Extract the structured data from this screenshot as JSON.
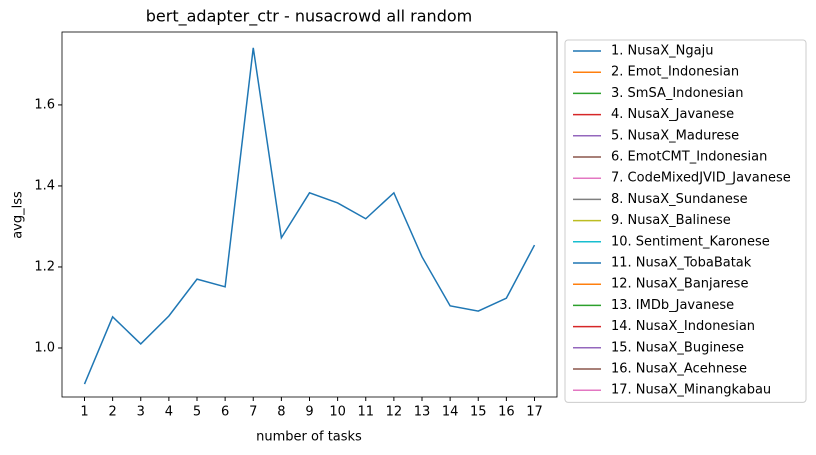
{
  "chart_data": {
    "type": "line",
    "title": "bert_adapter_ctr - nusacrowd all random",
    "xlabel": "number of tasks",
    "ylabel": "avg_lss",
    "x": [
      1,
      2,
      3,
      4,
      5,
      6,
      7,
      8,
      9,
      10,
      11,
      12,
      13,
      14,
      15,
      16,
      17
    ],
    "xlim": [
      0.2,
      17.8
    ],
    "xticks": [
      1,
      2,
      3,
      4,
      5,
      6,
      7,
      8,
      9,
      10,
      11,
      12,
      13,
      14,
      15,
      16,
      17
    ],
    "ylim": [
      0.879,
      1.78
    ],
    "yticks": [
      {
        "value": 1.0,
        "label": "1.0"
      },
      {
        "value": 1.2,
        "label": "1.2"
      },
      {
        "value": 1.4,
        "label": "1.4"
      },
      {
        "value": 1.6,
        "label": "1.6"
      }
    ],
    "legend": "outside right",
    "grid": false,
    "series": [
      {
        "name": "1. NusaX_Ngaju",
        "color": "#1f77b4",
        "values": [
          0.911,
          1.077,
          1.01,
          1.079,
          1.17,
          1.151,
          1.741,
          1.272,
          1.383,
          1.358,
          1.319,
          1.383,
          1.225,
          1.104,
          1.091,
          1.123,
          1.254
        ]
      },
      {
        "name": "2. Emot_Indonesian",
        "color": "#ff7f0e",
        "values": [
          null,
          null,
          null,
          null,
          null,
          null,
          null,
          null,
          null,
          null,
          null,
          null,
          null,
          null,
          null,
          null,
          null
        ]
      },
      {
        "name": "3. SmSA_Indonesian",
        "color": "#2ca02c",
        "values": [
          null,
          null,
          null,
          null,
          null,
          null,
          null,
          null,
          null,
          null,
          null,
          null,
          null,
          null,
          null,
          null,
          null
        ]
      },
      {
        "name": "4. NusaX_Javanese",
        "color": "#d62728",
        "values": [
          null,
          null,
          null,
          null,
          null,
          null,
          null,
          null,
          null,
          null,
          null,
          null,
          null,
          null,
          null,
          null,
          null
        ]
      },
      {
        "name": "5. NusaX_Madurese",
        "color": "#9467bd",
        "values": [
          null,
          null,
          null,
          null,
          null,
          null,
          null,
          null,
          null,
          null,
          null,
          null,
          null,
          null,
          null,
          null,
          null
        ]
      },
      {
        "name": "6. EmotCMT_Indonesian",
        "color": "#8c564b",
        "values": [
          null,
          null,
          null,
          null,
          null,
          null,
          null,
          null,
          null,
          null,
          null,
          null,
          null,
          null,
          null,
          null,
          null
        ]
      },
      {
        "name": "7. CodeMixedJVID_Javanese",
        "color": "#e377c2",
        "values": [
          null,
          null,
          null,
          null,
          null,
          null,
          null,
          null,
          null,
          null,
          null,
          null,
          null,
          null,
          null,
          null,
          null
        ]
      },
      {
        "name": "8. NusaX_Sundanese",
        "color": "#7f7f7f",
        "values": [
          null,
          null,
          null,
          null,
          null,
          null,
          null,
          null,
          null,
          null,
          null,
          null,
          null,
          null,
          null,
          null,
          null
        ]
      },
      {
        "name": "9. NusaX_Balinese",
        "color": "#bcbd22",
        "values": [
          null,
          null,
          null,
          null,
          null,
          null,
          null,
          null,
          null,
          null,
          null,
          null,
          null,
          null,
          null,
          null,
          null
        ]
      },
      {
        "name": "10. Sentiment_Karonese",
        "color": "#17becf",
        "values": [
          null,
          null,
          null,
          null,
          null,
          null,
          null,
          null,
          null,
          null,
          null,
          null,
          null,
          null,
          null,
          null,
          null
        ]
      },
      {
        "name": "11. NusaX_TobaBatak",
        "color": "#1f77b4",
        "values": [
          null,
          null,
          null,
          null,
          null,
          null,
          null,
          null,
          null,
          null,
          null,
          null,
          null,
          null,
          null,
          null,
          null
        ]
      },
      {
        "name": "12. NusaX_Banjarese",
        "color": "#ff7f0e",
        "values": [
          null,
          null,
          null,
          null,
          null,
          null,
          null,
          null,
          null,
          null,
          null,
          null,
          null,
          null,
          null,
          null,
          null
        ]
      },
      {
        "name": "13. IMDb_Javanese",
        "color": "#2ca02c",
        "values": [
          null,
          null,
          null,
          null,
          null,
          null,
          null,
          null,
          null,
          null,
          null,
          null,
          null,
          null,
          null,
          null,
          null
        ]
      },
      {
        "name": "14. NusaX_Indonesian",
        "color": "#d62728",
        "values": [
          null,
          null,
          null,
          null,
          null,
          null,
          null,
          null,
          null,
          null,
          null,
          null,
          null,
          null,
          null,
          null,
          null
        ]
      },
      {
        "name": "15. NusaX_Buginese",
        "color": "#9467bd",
        "values": [
          null,
          null,
          null,
          null,
          null,
          null,
          null,
          null,
          null,
          null,
          null,
          null,
          null,
          null,
          null,
          null,
          null
        ]
      },
      {
        "name": "16. NusaX_Acehnese",
        "color": "#8c564b",
        "values": [
          null,
          null,
          null,
          null,
          null,
          null,
          null,
          null,
          null,
          null,
          null,
          null,
          null,
          null,
          null,
          null,
          null
        ]
      },
      {
        "name": "17. NusaX_Minangkabau",
        "color": "#e377c2",
        "values": [
          null,
          null,
          null,
          null,
          null,
          null,
          null,
          null,
          null,
          null,
          null,
          null,
          null,
          null,
          null,
          null,
          null
        ]
      }
    ]
  }
}
